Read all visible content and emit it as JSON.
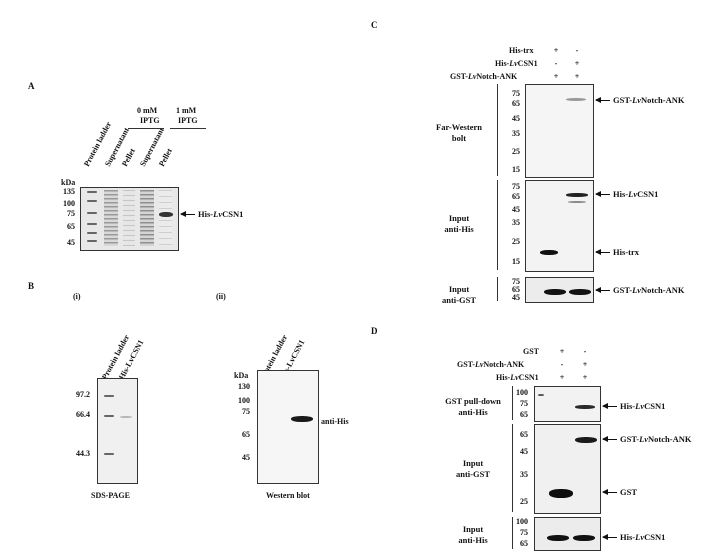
{
  "panelA": {
    "label": "A",
    "lanes": [
      "Protein ladder",
      "Supernatant",
      "Pellet",
      "Supernatant",
      "Pellet"
    ],
    "groups": [
      {
        "line1": "0 mM",
        "line2": "IPTG"
      },
      {
        "line1": "1 mM",
        "line2": "IPTG"
      }
    ],
    "kda_label": "kDa",
    "markers": [
      "135",
      "100",
      "75",
      "65",
      "45"
    ],
    "band_label_prefix": "His-",
    "band_label_italic": "Lv",
    "band_label_suffix": "CSN1"
  },
  "panelB": {
    "label": "B",
    "sub_i": "(i)",
    "sub_ii": "(ii)",
    "i_lanes": [
      "Protein ladder",
      "His-LvCSN1"
    ],
    "i_markers": [
      "97.2",
      "66.4",
      "44.3"
    ],
    "i_caption": "SDS-PAGE",
    "ii_lanes": [
      "Protein ladder",
      "His-LvCSN1"
    ],
    "ii_kda": "kDa",
    "ii_markers": [
      "130",
      "100",
      "75",
      "65",
      "45"
    ],
    "ii_band_label": "anti-His",
    "ii_caption": "Western blot"
  },
  "panelC": {
    "label": "C",
    "rows": [
      {
        "label": "His-trx",
        "signs": [
          "+",
          "-"
        ]
      },
      {
        "label_prefix": "His-",
        "label_italic": "Lv",
        "label_suffix": "CSN1",
        "signs": [
          "-",
          "+"
        ]
      },
      {
        "label_prefix": "GST-",
        "label_italic": "Lv",
        "label_suffix": "Notch-ANK",
        "signs": [
          "+",
          "+"
        ]
      }
    ],
    "blot1_side": [
      "Far-Western",
      "bolt"
    ],
    "blot1_markers": [
      "75",
      "65",
      "45",
      "35",
      "25",
      "15"
    ],
    "blot1_arrow": {
      "prefix": "GST-",
      "italic": "Lv",
      "suffix": "Notch-ANK"
    },
    "blot2_side": [
      "Input",
      "anti-His"
    ],
    "blot2_markers": [
      "75",
      "65",
      "45",
      "35",
      "25",
      "15"
    ],
    "blot2_arrow1": {
      "prefix": "His-",
      "italic": "Lv",
      "suffix": "CSN1"
    },
    "blot2_arrow2": "His-trx",
    "blot3_side": [
      "Input",
      "anti-GST"
    ],
    "blot3_markers": [
      "75",
      "65",
      "45"
    ],
    "blot3_arrow": {
      "prefix": "GST-",
      "italic": "Lv",
      "suffix": "Notch-ANK"
    }
  },
  "panelD": {
    "label": "D",
    "rows": [
      {
        "label": "GST",
        "signs": [
          "+",
          "-"
        ]
      },
      {
        "label_prefix": "GST-",
        "label_italic": "Lv",
        "label_suffix": "Notch-ANK",
        "signs": [
          "-",
          "+"
        ]
      },
      {
        "label_prefix": "His-",
        "label_italic": "Lv",
        "label_suffix": "CSN1",
        "signs": [
          "+",
          "+"
        ]
      }
    ],
    "blot1_side": [
      "GST pull-down",
      "anti-His"
    ],
    "blot1_markers": [
      "100",
      "75",
      "65"
    ],
    "blot1_arrow": {
      "prefix": "His-",
      "italic": "Lv",
      "suffix": "CSN1"
    },
    "blot2_side": [
      "Input",
      "anti-GST"
    ],
    "blot2_markers": [
      "65",
      "45",
      "35",
      "25"
    ],
    "blot2_arrow1": {
      "prefix": "GST-",
      "italic": "Lv",
      "suffix": "Notch-ANK"
    },
    "blot2_arrow2": "GST",
    "blot3_side": [
      "Input",
      "anti-His"
    ],
    "blot3_markers": [
      "100",
      "75",
      "65"
    ],
    "blot3_arrow": {
      "prefix": "His-",
      "italic": "Lv",
      "suffix": "CSN1"
    }
  }
}
